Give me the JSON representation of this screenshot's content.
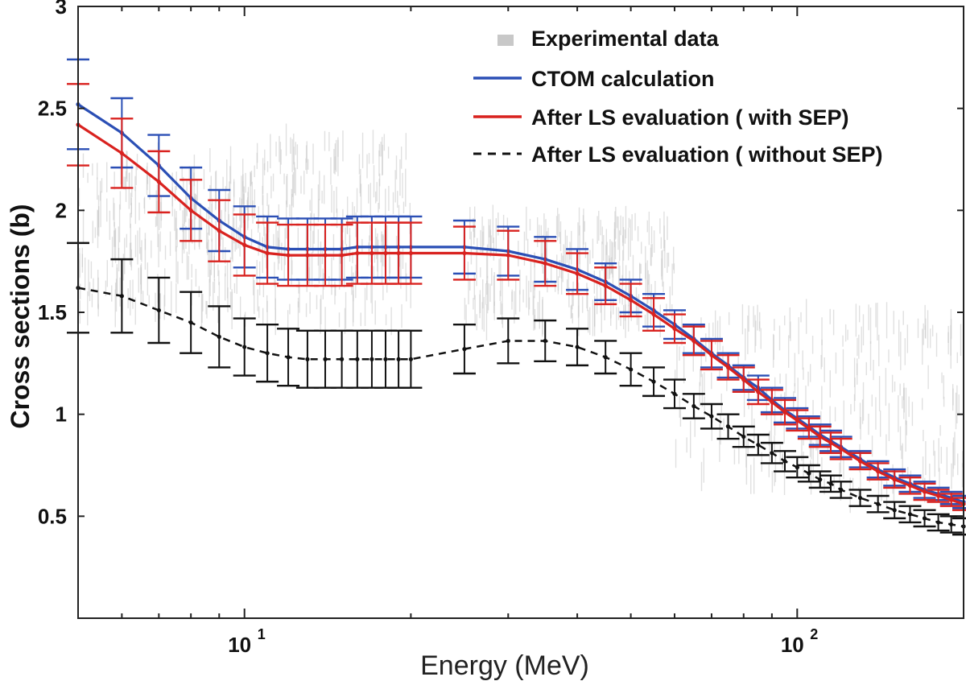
{
  "chart_data": {
    "type": "line",
    "title": "",
    "xlabel": "Energy (MeV)",
    "ylabel": "Cross sections (b)",
    "xscale": "log",
    "xlim": [
      5,
      200
    ],
    "ylim": [
      0,
      3
    ],
    "yticks": [
      "3",
      "2.5",
      "2",
      "1.5",
      "1",
      "0.5"
    ],
    "xtick_base": "10",
    "xticks": [
      {
        "value": 10,
        "exp": "1"
      },
      {
        "value": 100,
        "exp": "2"
      }
    ],
    "legend": {
      "position": "top-right",
      "entries": [
        {
          "label": "Experimental data",
          "style": "points",
          "color": "#c8c8c8"
        },
        {
          "label": "CTOM calculation",
          "style": "solid",
          "color": "#2b4fb5"
        },
        {
          "label": "After LS evaluation ( with SEP)",
          "style": "solid",
          "color": "#d9221f"
        },
        {
          "label": "After LS evaluation ( without SEP)",
          "style": "dashed",
          "color": "#111111"
        }
      ]
    },
    "energies": [
      5,
      6,
      7,
      8,
      9,
      10,
      11,
      12,
      13,
      14,
      15,
      16,
      17,
      18,
      19,
      20,
      25,
      30,
      35,
      40,
      45,
      50,
      55,
      60,
      65,
      70,
      75,
      80,
      85,
      90,
      95,
      100,
      105,
      110,
      115,
      120,
      130,
      140,
      150,
      160,
      170,
      180,
      190,
      200
    ],
    "series": [
      {
        "name": "CTOM calculation",
        "color": "#2b4fb5",
        "values": [
          2.52,
          2.38,
          2.22,
          2.06,
          1.95,
          1.87,
          1.82,
          1.81,
          1.81,
          1.81,
          1.81,
          1.82,
          1.82,
          1.82,
          1.82,
          1.82,
          1.82,
          1.8,
          1.76,
          1.71,
          1.65,
          1.58,
          1.51,
          1.44,
          1.37,
          1.3,
          1.24,
          1.18,
          1.13,
          1.07,
          1.02,
          0.98,
          0.94,
          0.9,
          0.87,
          0.84,
          0.78,
          0.73,
          0.69,
          0.66,
          0.63,
          0.61,
          0.59,
          0.57
        ],
        "errors": [
          0.22,
          0.17,
          0.15,
          0.15,
          0.15,
          0.15,
          0.15,
          0.15,
          0.15,
          0.15,
          0.15,
          0.15,
          0.15,
          0.15,
          0.15,
          0.15,
          0.13,
          0.12,
          0.11,
          0.1,
          0.09,
          0.08,
          0.08,
          0.07,
          0.07,
          0.07,
          0.06,
          0.06,
          0.06,
          0.06,
          0.06,
          0.05,
          0.05,
          0.05,
          0.05,
          0.05,
          0.04,
          0.04,
          0.04,
          0.04,
          0.04,
          0.03,
          0.03,
          0.03
        ]
      },
      {
        "name": "After LS evaluation ( with SEP)",
        "color": "#d9221f",
        "values": [
          2.42,
          2.28,
          2.14,
          2.0,
          1.9,
          1.83,
          1.79,
          1.78,
          1.78,
          1.78,
          1.78,
          1.79,
          1.79,
          1.79,
          1.79,
          1.79,
          1.79,
          1.78,
          1.74,
          1.69,
          1.63,
          1.56,
          1.49,
          1.42,
          1.36,
          1.29,
          1.23,
          1.17,
          1.11,
          1.06,
          1.01,
          0.97,
          0.93,
          0.89,
          0.86,
          0.83,
          0.77,
          0.72,
          0.68,
          0.65,
          0.62,
          0.6,
          0.58,
          0.56
        ],
        "errors": [
          0.2,
          0.17,
          0.15,
          0.15,
          0.15,
          0.15,
          0.15,
          0.15,
          0.15,
          0.15,
          0.15,
          0.15,
          0.15,
          0.15,
          0.15,
          0.15,
          0.13,
          0.12,
          0.11,
          0.1,
          0.09,
          0.08,
          0.08,
          0.07,
          0.07,
          0.07,
          0.06,
          0.06,
          0.06,
          0.06,
          0.06,
          0.05,
          0.05,
          0.05,
          0.05,
          0.05,
          0.04,
          0.04,
          0.04,
          0.04,
          0.04,
          0.03,
          0.03,
          0.03
        ]
      },
      {
        "name": "After LS evaluation ( without SEP)",
        "color": "#111111",
        "dashed": true,
        "values": [
          1.62,
          1.58,
          1.51,
          1.45,
          1.38,
          1.33,
          1.3,
          1.28,
          1.27,
          1.27,
          1.27,
          1.27,
          1.27,
          1.27,
          1.27,
          1.27,
          1.32,
          1.36,
          1.36,
          1.33,
          1.28,
          1.22,
          1.16,
          1.1,
          1.04,
          0.99,
          0.94,
          0.89,
          0.85,
          0.81,
          0.77,
          0.74,
          0.71,
          0.68,
          0.66,
          0.63,
          0.59,
          0.56,
          0.53,
          0.51,
          0.49,
          0.47,
          0.46,
          0.45
        ],
        "errors": [
          0.22,
          0.18,
          0.16,
          0.15,
          0.15,
          0.14,
          0.14,
          0.14,
          0.14,
          0.14,
          0.14,
          0.14,
          0.14,
          0.14,
          0.14,
          0.14,
          0.12,
          0.11,
          0.1,
          0.09,
          0.08,
          0.08,
          0.07,
          0.07,
          0.06,
          0.06,
          0.06,
          0.05,
          0.05,
          0.05,
          0.05,
          0.05,
          0.04,
          0.04,
          0.04,
          0.04,
          0.04,
          0.04,
          0.04,
          0.04,
          0.04,
          0.04,
          0.04,
          0.04
        ]
      }
    ],
    "experimental": {
      "name": "Experimental data",
      "color": "#c8c8c8",
      "bands": [
        {
          "from": 5,
          "to": 10,
          "lower": 1.5,
          "upper": 2.25
        },
        {
          "from": 10,
          "to": 20,
          "lower": 1.45,
          "upper": 2.35
        },
        {
          "from": 25,
          "to": 60,
          "lower": 1.45,
          "upper": 1.95
        },
        {
          "from": 60,
          "to": 200,
          "lower": 0.6,
          "upper": 1.5
        }
      ]
    }
  }
}
